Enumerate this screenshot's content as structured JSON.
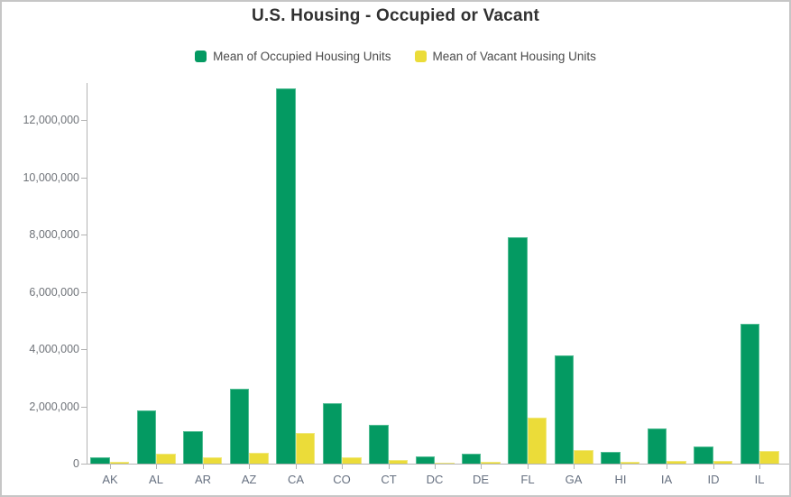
{
  "title": "U.S. Housing - Occupied or Vacant",
  "chart_data": {
    "type": "bar",
    "title": "U.S. Housing - Occupied or Vacant",
    "xlabel": "",
    "ylabel": "",
    "grid": false,
    "legend_position": "top",
    "categories": [
      "AK",
      "AL",
      "AR",
      "AZ",
      "CA",
      "CO",
      "CT",
      "DC",
      "DE",
      "FL",
      "GA",
      "HI",
      "IA",
      "ID",
      "IL"
    ],
    "series": [
      {
        "name": "Mean of Occupied Housing Units",
        "color": "#049a62",
        "values": [
          230000,
          1860000,
          1140000,
          2600000,
          13100000,
          2100000,
          1360000,
          250000,
          340000,
          7900000,
          3790000,
          425000,
          1230000,
          600000,
          4870000
        ]
      },
      {
        "name": "Mean of Vacant Housing Units",
        "color": "#ebdc39",
        "values": [
          60000,
          350000,
          210000,
          380000,
          1070000,
          215000,
          125000,
          35000,
          60000,
          1600000,
          470000,
          75000,
          105000,
          90000,
          450000
        ]
      }
    ],
    "ylim": [
      0,
      13200000
    ],
    "yticks": [
      {
        "label": "0",
        "value": 0
      },
      {
        "label": "2,000,000",
        "value": 2000000
      },
      {
        "label": "4,000,000",
        "value": 4000000
      },
      {
        "label": "6,000,000",
        "value": 6000000
      },
      {
        "label": "8,000,000",
        "value": 8000000
      },
      {
        "label": "10,000,000",
        "value": 10000000
      },
      {
        "label": "12,000,000",
        "value": 12000000
      }
    ]
  },
  "colors": {
    "axis": "#b4b4b4",
    "y_label_text": "#6e7278",
    "x_label_text": "#667080",
    "title_text": "#313131",
    "legend_text": "#4a4a4a",
    "card_border": "#c6c6c6",
    "background": "#ffffff"
  }
}
